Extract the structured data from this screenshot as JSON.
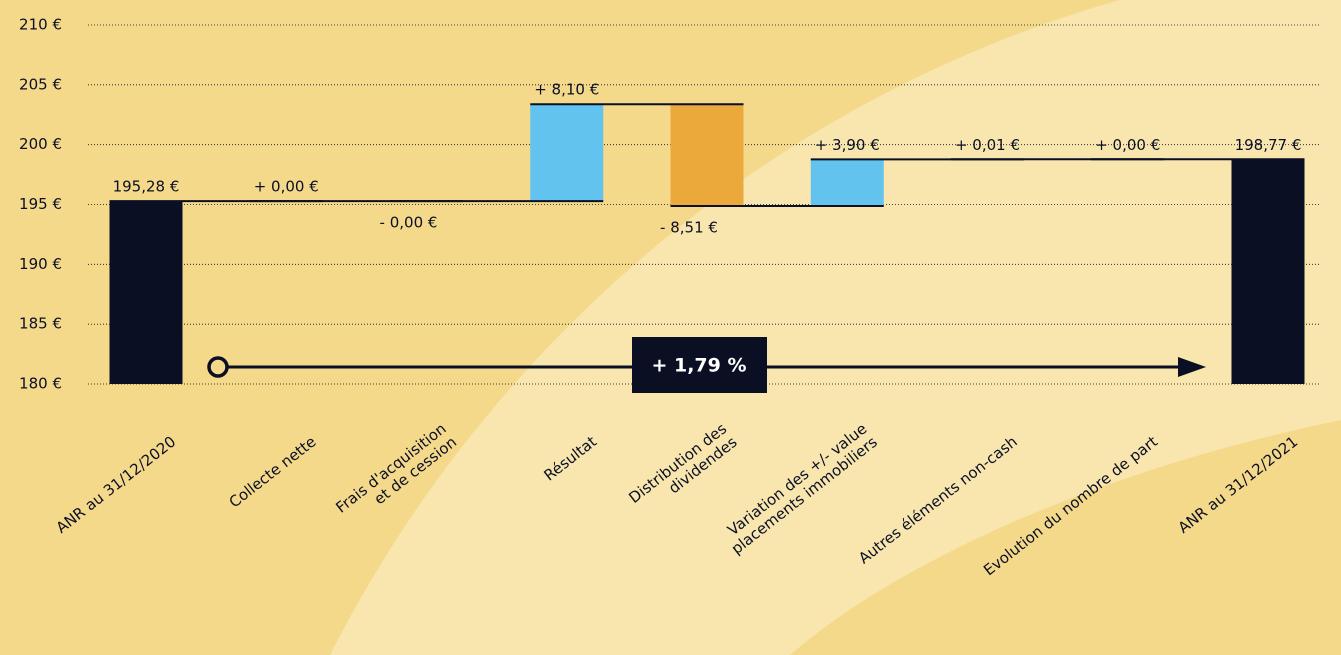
{
  "chart_data": {
    "type": "waterfall",
    "categories": [
      "ANR au 31/12/2020",
      "Collecte nette",
      "Frais d'acquisition\net de cession",
      "Résultat",
      "Distribution des\ndividendes",
      "Variation des +/- value\nplacements immobiliers",
      "Autres éléments non-cash",
      "Evolution du nombre de part",
      "ANR au 31/12/2021"
    ],
    "values": [
      195.28,
      0,
      0,
      8.1,
      -8.51,
      3.9,
      0.01,
      0,
      198.77
    ],
    "value_labels": [
      "195,28 €",
      "+ 0,00 €",
      "- 0,00 €",
      "+ 8,10 €",
      "- 8,51 €",
      "+ 3,90 €",
      "+ 0,01 €",
      "+ 0,00 €",
      "198,77 €"
    ],
    "totals": [
      true,
      false,
      false,
      false,
      false,
      false,
      false,
      false,
      true
    ],
    "colors": [
      "#0a0f24",
      "#62c3ee",
      "#eaa93a",
      "#62c3ee",
      "#eaa93a",
      "#62c3ee",
      "#62c3ee",
      "#62c3ee",
      "#0a0f24"
    ],
    "ylim": [
      180,
      210
    ],
    "yticks": [
      {
        "value": 180,
        "label": "180 €"
      },
      {
        "value": 185,
        "label": "185 €"
      },
      {
        "value": 190,
        "label": "190 €"
      },
      {
        "value": 195,
        "label": "195 €"
      },
      {
        "value": 200,
        "label": "200 €"
      },
      {
        "value": 205,
        "label": "205 €"
      },
      {
        "value": 210,
        "label": "210 €"
      }
    ],
    "grid": true,
    "annotation": "+ 1,79 %"
  }
}
